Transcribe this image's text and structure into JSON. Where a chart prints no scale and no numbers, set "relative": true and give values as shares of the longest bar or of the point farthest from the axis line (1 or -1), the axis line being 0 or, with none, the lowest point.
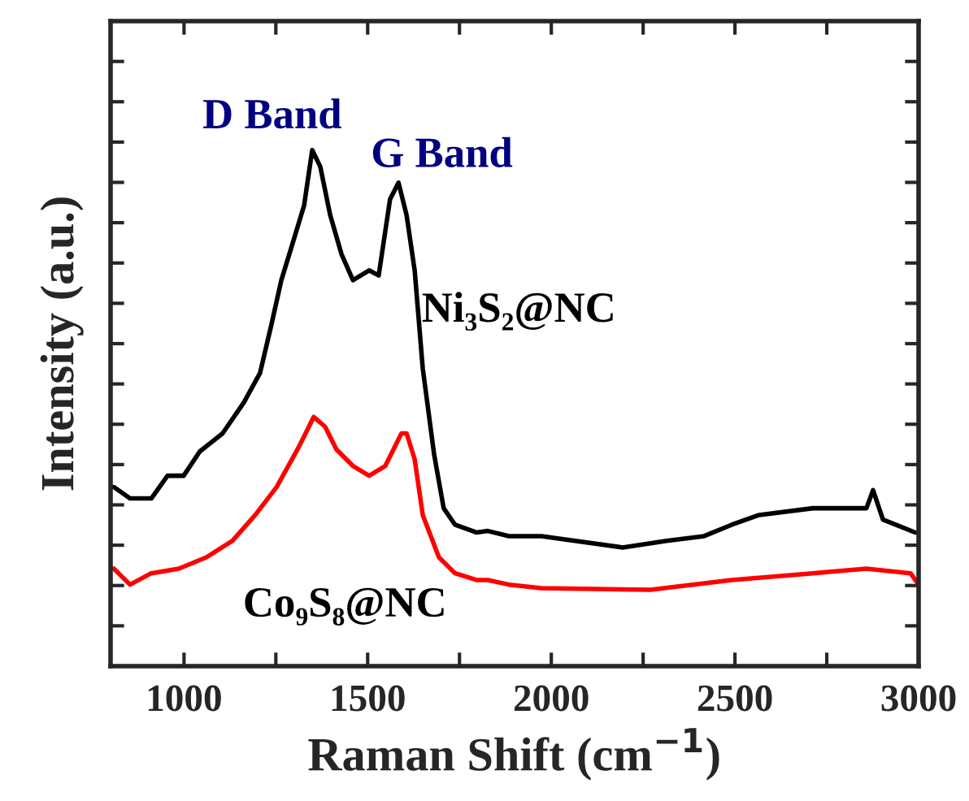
{
  "chart_data": {
    "type": "line",
    "relative": true,
    "xlabel": "Raman Shift (cm$^{−1}$)",
    "ylabel": "Intensity (a.u.)",
    "xlim": [
      800,
      3000
    ],
    "xticks": [
      1000,
      {
        "value": 1250,
        "label": null
      },
      1500,
      {
        "value": 1750,
        "label": null
      },
      2000,
      {
        "value": 2250,
        "label": null
      },
      2500,
      {
        "value": 2750,
        "label": null
      },
      3000
    ],
    "annotations": [
      "D Band",
      "G Band"
    ],
    "series": [
      {
        "name": "Ni₃S₂@NC",
        "color": "#000000",
        "x": [
          809,
          853,
          911,
          955,
          999,
          1043,
          1105,
          1163,
          1207,
          1238,
          1265,
          1296,
          1327,
          1349,
          1371,
          1398,
          1429,
          1460,
          1504,
          1530,
          1561,
          1584,
          1606,
          1628,
          1650,
          1681,
          1707,
          1738,
          1796,
          1827,
          1885,
          1973,
          2194,
          2314,
          2416,
          2491,
          2566,
          2712,
          2858,
          2876,
          2903,
          2991
        ],
        "values": [
          0.347,
          0.325,
          0.325,
          0.369,
          0.369,
          0.416,
          0.451,
          0.511,
          0.568,
          0.662,
          0.748,
          0.82,
          0.893,
          1.0,
          0.968,
          0.874,
          0.798,
          0.748,
          0.767,
          0.757,
          0.905,
          0.937,
          0.874,
          0.767,
          0.577,
          0.41,
          0.306,
          0.274,
          0.259,
          0.262,
          0.252,
          0.252,
          0.23,
          0.243,
          0.252,
          0.274,
          0.293,
          0.306,
          0.306,
          0.341,
          0.284,
          0.259
        ]
      },
      {
        "name": "Co₉S₈@NC",
        "color": "#ff0000",
        "x": [
          809,
          853,
          911,
          986,
          1061,
          1132,
          1194,
          1252,
          1309,
          1331,
          1353,
          1384,
          1415,
          1460,
          1504,
          1548,
          1592,
          1606,
          1628,
          1650,
          1694,
          1738,
          1796,
          1827,
          1885,
          1973,
          2270,
          2491,
          2712,
          2858,
          2978,
          3000
        ],
        "values": [
          0.189,
          0.158,
          0.18,
          0.189,
          0.211,
          0.243,
          0.293,
          0.347,
          0.42,
          0.451,
          0.483,
          0.464,
          0.42,
          0.388,
          0.369,
          0.388,
          0.451,
          0.451,
          0.401,
          0.293,
          0.211,
          0.18,
          0.167,
          0.167,
          0.158,
          0.151,
          0.148,
          0.167,
          0.18,
          0.189,
          0.18,
          0.158
        ]
      }
    ]
  }
}
